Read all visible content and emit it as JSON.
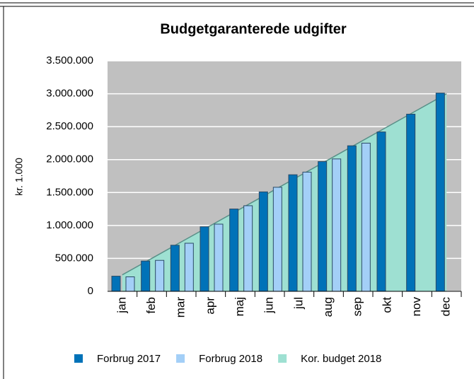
{
  "chart_data": {
    "type": "bar_area",
    "title": "Budgetgaranterede udgifter",
    "y_label": "kr. 1.000",
    "categories": [
      "jan",
      "feb",
      "mar",
      "apr",
      "maj",
      "jun",
      "jul",
      "aug",
      "sep",
      "okt",
      "nov",
      "dec"
    ],
    "series": [
      {
        "name": "Forbrug 2017",
        "kind": "bar",
        "color": "#0072b8",
        "values": [
          230000,
          460000,
          700000,
          980000,
          1250000,
          1510000,
          1770000,
          1970000,
          2210000,
          2420000,
          2690000,
          3010000
        ]
      },
      {
        "name": "Forbrug 2018",
        "kind": "bar",
        "color": "#a3cff7",
        "values": [
          220000,
          470000,
          730000,
          1020000,
          1300000,
          1580000,
          1810000,
          2010000,
          2250000,
          null,
          null,
          null
        ]
      },
      {
        "name": "Kor. budget 2018",
        "kind": "area",
        "color": "#9ee0d2",
        "values": [
          250000,
          500000,
          750000,
          1000000,
          1250000,
          1500000,
          1750000,
          2000000,
          2250000,
          2500000,
          2750000,
          3000000
        ]
      }
    ],
    "ylim": [
      0,
      3500000
    ],
    "yticks": [
      0,
      {
        "value": 500000,
        "label": "500.000"
      },
      {
        "value": 1000000,
        "label": "1.000.000"
      },
      {
        "value": 1500000,
        "label": "1.500.000"
      },
      {
        "value": 2000000,
        "label": "2.000.000"
      },
      {
        "value": 2500000,
        "label": "2.500.000"
      },
      {
        "value": 3000000,
        "label": "3.000.000"
      },
      {
        "value": 3500000,
        "label": "3.500.000"
      }
    ],
    "grid": true
  }
}
